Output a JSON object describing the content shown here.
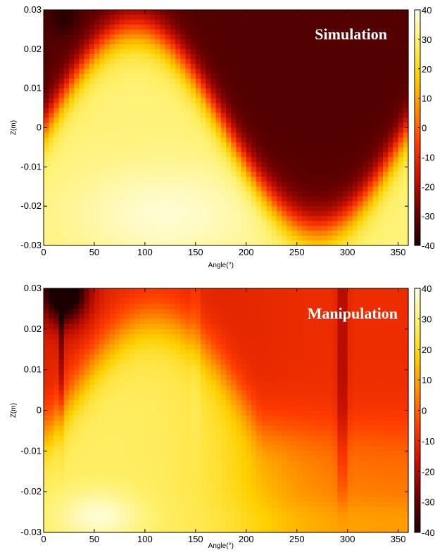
{
  "chart_data": [
    {
      "type": "heatmap",
      "title": "Simulation",
      "xlabel": "Angle(°)",
      "ylabel": "Z(m)",
      "xlim": [
        0,
        360
      ],
      "ylim": [
        -0.03,
        0.03
      ],
      "x_ticks": [
        "0",
        "50",
        "100",
        "150",
        "200",
        "250",
        "300",
        "350"
      ],
      "y_ticks": [
        "0.03",
        "0.02",
        "0.01",
        "0",
        "-0.01",
        "-0.02",
        "-0.03"
      ],
      "colorbar": {
        "range": [
          -40,
          40
        ],
        "ticks": [
          "40",
          "30",
          "20",
          "10",
          "0",
          "-10",
          "-20",
          "-30",
          "-40"
        ]
      },
      "colormap": [
        "#1a0000",
        "#6b0000",
        "#c41000",
        "#ff3a00",
        "#ff8a00",
        "#ffd000",
        "#fff06a",
        "#ffffe8"
      ],
      "pattern": {
        "boundary_shape": "sinusoid",
        "boundary_peak": {
          "angle": 90,
          "z": 0.025
        },
        "boundary_trough": {
          "angle": 270,
          "z": -0.026
        },
        "below_boundary_value": 30,
        "above_boundary_value": -32
      }
    },
    {
      "type": "heatmap",
      "title": "Manipulation",
      "xlabel": "Angle(°)",
      "ylabel": "Z(m)",
      "xlim": [
        0,
        360
      ],
      "ylim": [
        -0.03,
        0.03
      ],
      "x_ticks": [
        "0",
        "50",
        "100",
        "150",
        "200",
        "250",
        "300",
        "350"
      ],
      "y_ticks": [
        "0.03",
        "0.02",
        "0.01",
        "0",
        "-0.01",
        "-0.02",
        "-0.03"
      ],
      "colorbar": {
        "range": [
          -40,
          40
        ],
        "ticks": [
          "40",
          "30",
          "20",
          "10",
          "0",
          "-10",
          "-20",
          "-30",
          "-40"
        ]
      },
      "colormap": [
        "#1a0000",
        "#6b0000",
        "#c41000",
        "#ff3a00",
        "#ff8a00",
        "#ffd000",
        "#fff06a",
        "#ffffe8"
      ],
      "pattern": {
        "bright_region_peak": {
          "angle": 85,
          "z": 0.023
        },
        "dark_corner": {
          "angle": 20,
          "z": 0.03
        },
        "vertical_streaks_angle": [
          150,
          295
        ],
        "right_region_value": -12
      }
    }
  ]
}
